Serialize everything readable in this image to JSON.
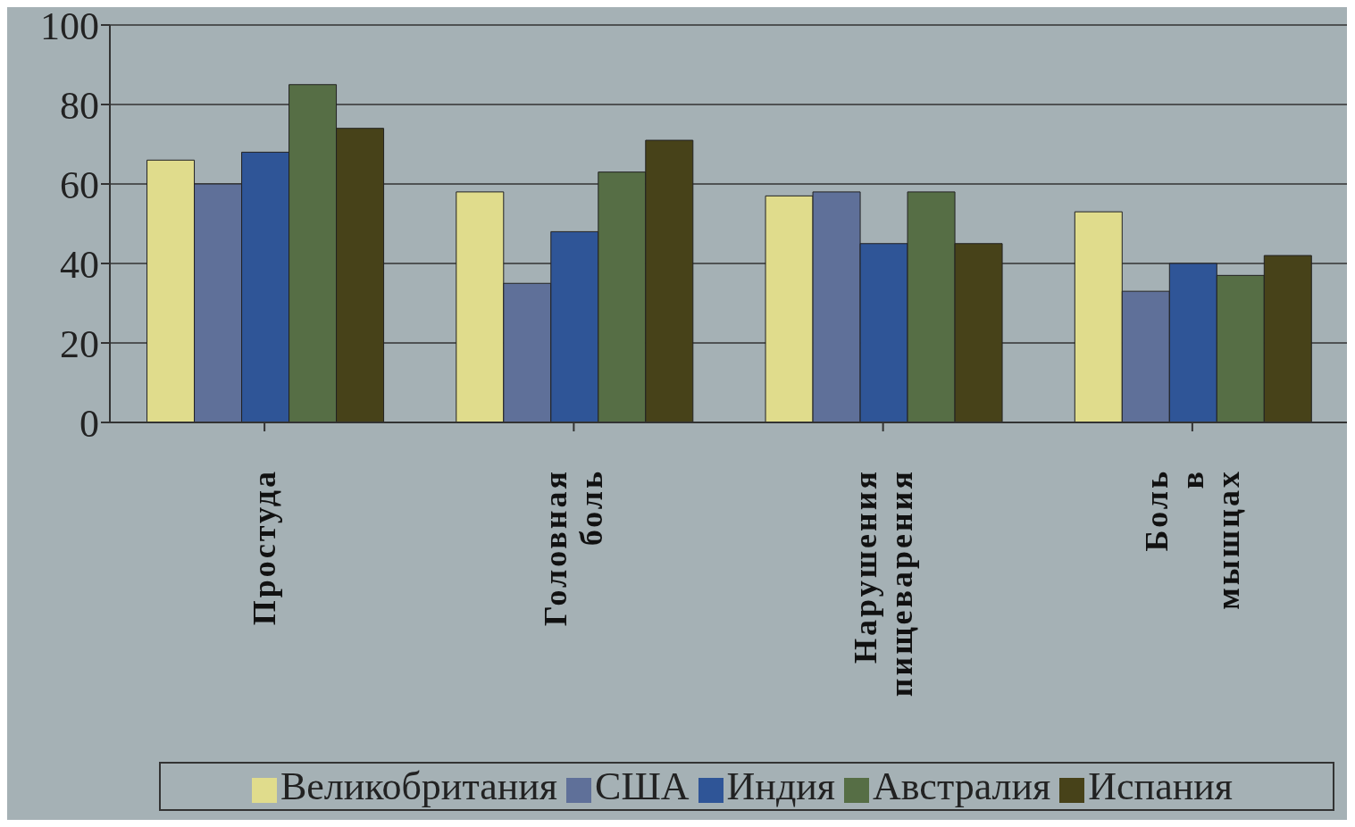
{
  "chart_data": {
    "type": "bar",
    "categories": [
      "Простуда",
      "Головная боль",
      "Нарушения пищеварения",
      "Боль в мышцах"
    ],
    "series": [
      {
        "name": "Великобритания",
        "color": "#e0dc8c",
        "values": [
          66,
          58,
          57,
          53
        ]
      },
      {
        "name": "США",
        "color": "#5f7099",
        "values": [
          60,
          35,
          58,
          33
        ]
      },
      {
        "name": "Индия",
        "color": "#2f5597",
        "values": [
          68,
          48,
          45,
          40
        ]
      },
      {
        "name": "Австралия",
        "color": "#566e45",
        "values": [
          85,
          63,
          58,
          37
        ]
      },
      {
        "name": "Испания",
        "color": "#474219",
        "values": [
          74,
          71,
          45,
          42
        ]
      }
    ],
    "ylim": [
      0,
      100
    ],
    "yticks": [
      0,
      20,
      40,
      60,
      80,
      100
    ],
    "grid": "y",
    "legend": "bottom"
  }
}
